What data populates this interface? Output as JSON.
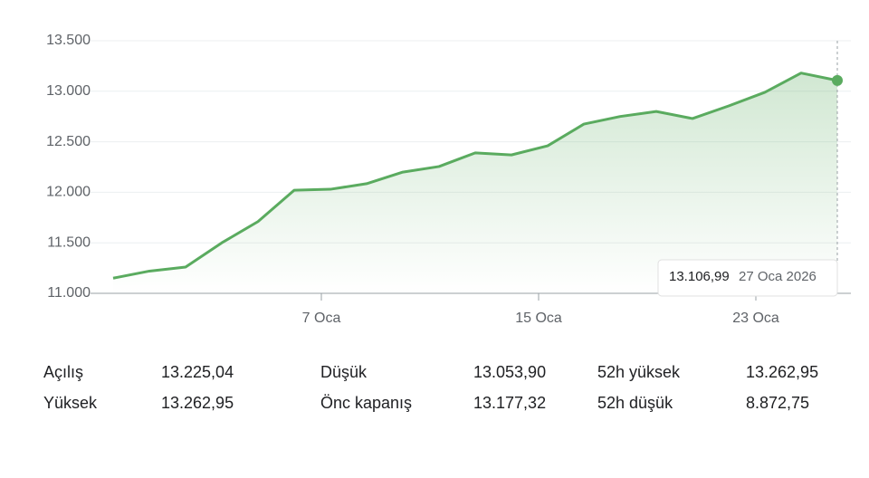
{
  "chart_data": {
    "type": "line",
    "series": [
      {
        "color": "#5aab5f",
        "values": [
          11150,
          11220,
          11260,
          11500,
          11710,
          12020,
          12030,
          12085,
          12200,
          12255,
          12390,
          12370,
          12460,
          12675,
          12750,
          12800,
          12730,
          12855,
          12990,
          13180,
          13106.99
        ]
      }
    ],
    "ylim": [
      11000,
      13500
    ],
    "yticks": [
      {
        "value": 11000,
        "label": "11.000"
      },
      {
        "value": 11500,
        "label": "11.500"
      },
      {
        "value": 12000,
        "label": "12.000"
      },
      {
        "value": 12500,
        "label": "12.500"
      },
      {
        "value": 13000,
        "label": "13.000"
      },
      {
        "value": 13500,
        "label": "13.500"
      }
    ],
    "xlim": [
      0,
      20
    ],
    "xticks": [
      {
        "value": 5.75,
        "label": "7 Oca"
      },
      {
        "value": 11.75,
        "label": "15 Oca"
      },
      {
        "value": 17.75,
        "label": "23 Oca"
      }
    ],
    "grid": true,
    "tooltip": {
      "value": "13.106,99",
      "date": "27 Oca 2026"
    }
  },
  "stats": {
    "rows": [
      [
        "Açılış",
        "13.225,04",
        "Düşük",
        "13.053,90",
        "52h yüksek",
        "13.262,95"
      ],
      [
        "Yüksek",
        "13.262,95",
        "Önc kapanış",
        "13.177,32",
        "52h düşük",
        "8.872,75"
      ]
    ]
  }
}
